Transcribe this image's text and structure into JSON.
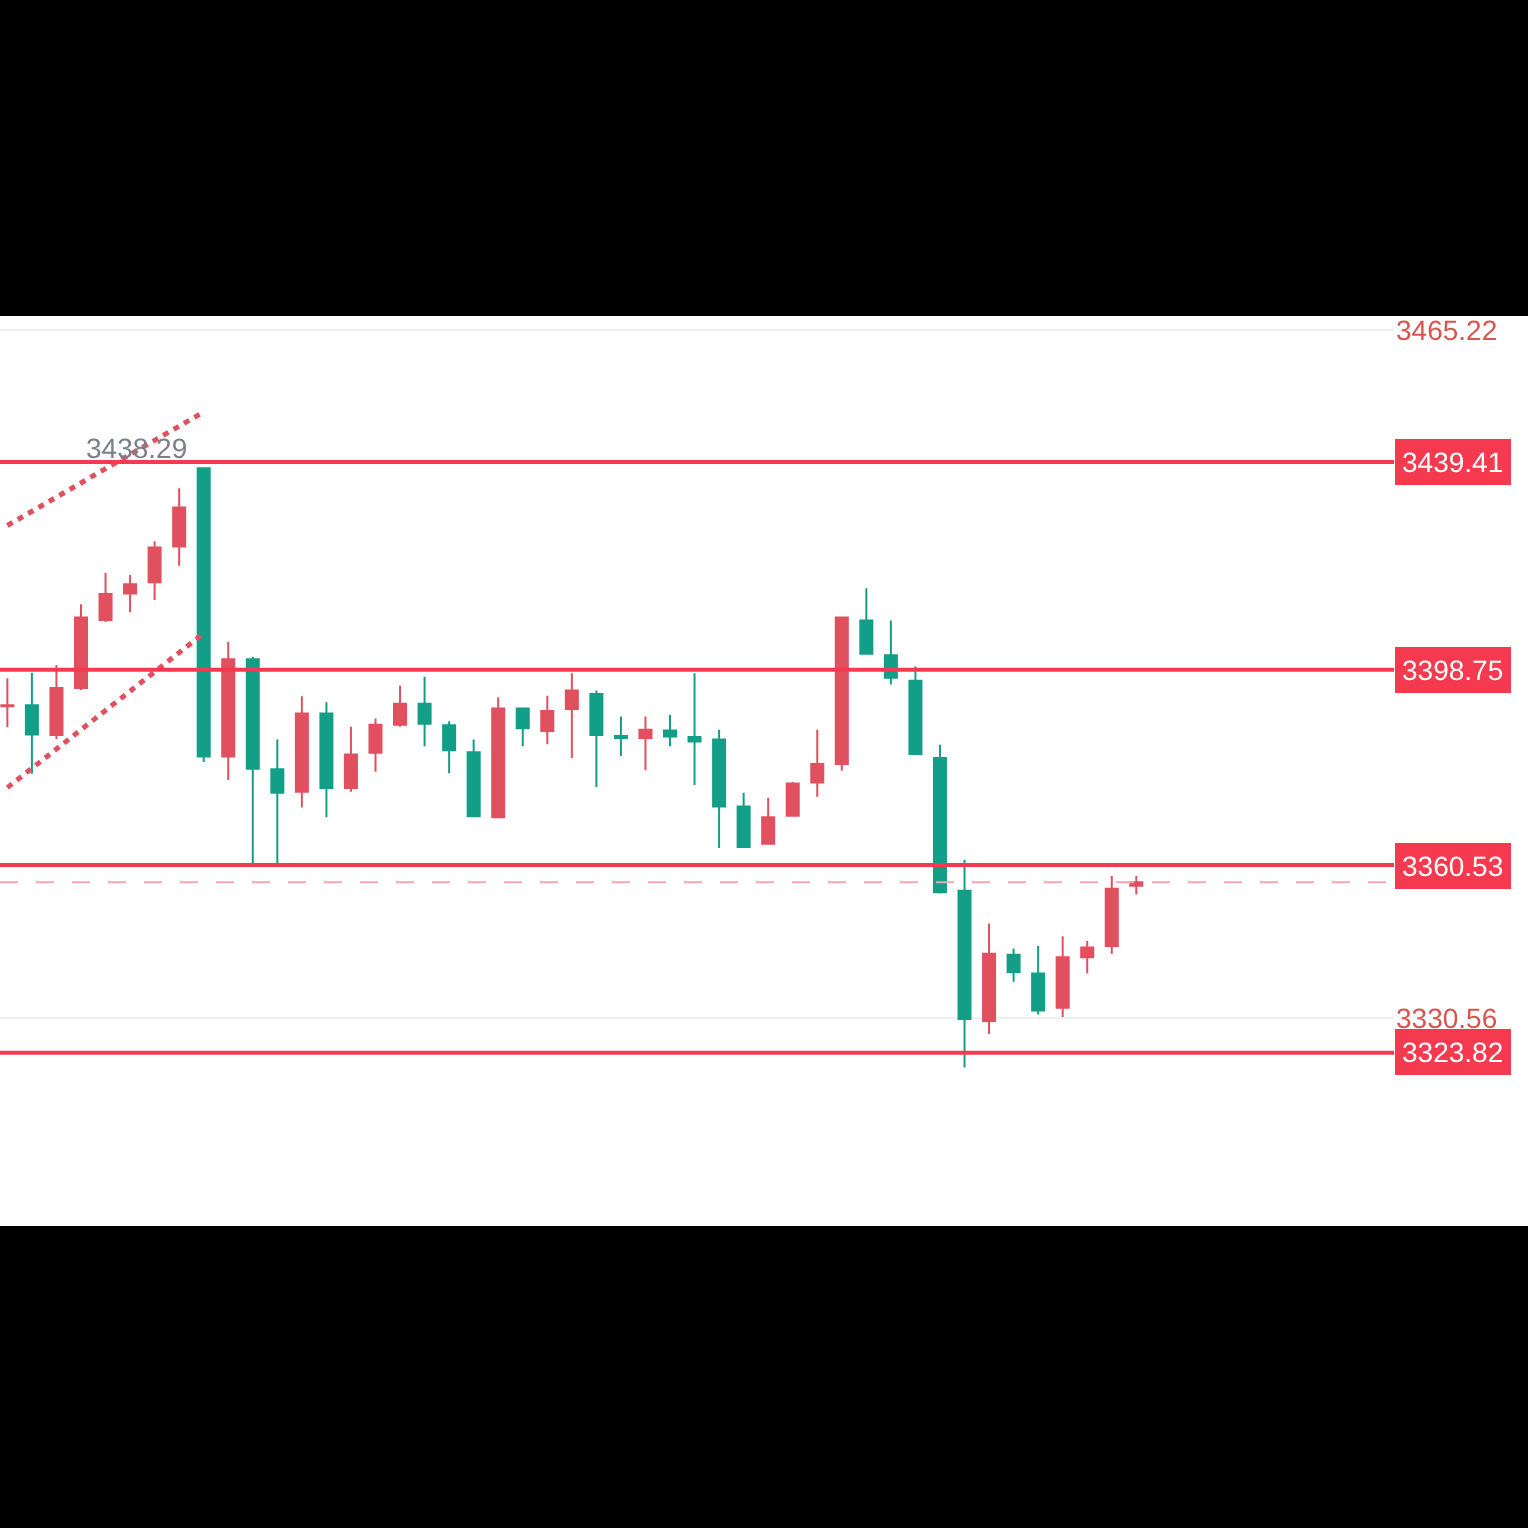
{
  "chart_data": {
    "type": "candlestick",
    "categories": [
      null,
      null,
      null,
      null,
      null,
      null,
      null,
      null,
      null,
      null,
      null,
      null,
      null,
      null,
      null,
      null,
      null,
      null,
      null,
      null,
      null,
      null,
      null,
      null,
      null,
      null,
      null,
      null,
      null,
      null,
      null,
      null,
      null,
      null,
      null,
      null,
      null,
      null,
      null,
      null,
      null,
      null,
      null,
      null,
      null,
      null,
      null,
      null,
      null,
      null,
      null,
      null,
      null,
      null,
      null,
      null,
      null
    ],
    "ohlc": [
      [
        3391.6,
        3397.1,
        3387.5,
        3391.8
      ],
      [
        3391.8,
        3398.2,
        3378.4,
        3386.1
      ],
      [
        3386.0,
        3399.7,
        3385.2,
        3395.2
      ],
      [
        3395.2,
        3411.6,
        3394.8,
        3409.0
      ],
      [
        3408.5,
        3417.7,
        3408.1,
        3413.6
      ],
      [
        3413.7,
        3417.3,
        3410.0,
        3415.5
      ],
      [
        3415.9,
        3423.9,
        3412.4,
        3422.7
      ],
      [
        3422.9,
        3434.3,
        3419.1,
        3430.5
      ],
      [
        3438.2,
        3438.29,
        3380.7,
        3381.8
      ],
      [
        3381.8,
        3404.2,
        3377.2,
        3400.8
      ],
      [
        3400.8,
        3401.3,
        3360.4,
        3379.4
      ],
      [
        3379.3,
        3385.1,
        3360.3,
        3374.7
      ],
      [
        3374.9,
        3393.6,
        3371.8,
        3390.2
      ],
      [
        3390.2,
        3392.4,
        3369.9,
        3375.6
      ],
      [
        3375.6,
        3387.6,
        3374.9,
        3382.2
      ],
      [
        3382.5,
        3389.2,
        3378.8,
        3388.0
      ],
      [
        3388.0,
        3395.7,
        3387.6,
        3392.1
      ],
      [
        3392.1,
        3397.4,
        3383.8,
        3388.2
      ],
      [
        3387.9,
        3388.7,
        3378.5,
        3383.0
      ],
      [
        3382.6,
        3385.1,
        3370.0,
        3370.1
      ],
      [
        3369.9,
        3393.4,
        3369.7,
        3391.2
      ],
      [
        3391.2,
        3391.4,
        3383.8,
        3387.3
      ],
      [
        3386.8,
        3393.7,
        3384.2,
        3390.7
      ],
      [
        3391.1,
        3398.1,
        3381.5,
        3394.7
      ],
      [
        3394.0,
        3394.7,
        3375.8,
        3386.0
      ],
      [
        3385.8,
        3389.6,
        3381.9,
        3385.4
      ],
      [
        3385.4,
        3389.6,
        3379.1,
        3387.0
      ],
      [
        3386.9,
        3389.9,
        3383.8,
        3385.7
      ],
      [
        3385.6,
        3398.1,
        3376.2,
        3384.7
      ],
      [
        3385.1,
        3387.0,
        3363.9,
        3372.0
      ],
      [
        3372.0,
        3374.7,
        3363.9,
        3364.1
      ],
      [
        3364.7,
        3373.7,
        3364.5,
        3369.9
      ],
      [
        3370.2,
        3376.8,
        3370.0,
        3376.5
      ],
      [
        3376.7,
        3387.0,
        3373.9,
        3380.3
      ],
      [
        3380.3,
        3409.2,
        3379.0,
        3409.0
      ],
      [
        3408.4,
        3414.7,
        3401.7,
        3401.9
      ],
      [
        3401.6,
        3408.4,
        3395.9,
        3397.2
      ],
      [
        3396.6,
        3399.4,
        3382.1,
        3382.3
      ],
      [
        3381.5,
        3384.1,
        3355.0,
        3355.2
      ],
      [
        3355.5,
        3361.6,
        3320.9,
        3330.4
      ],
      [
        3330.0,
        3349.1,
        3327.5,
        3343.2
      ],
      [
        3343.0,
        3344.2,
        3337.7,
        3339.6
      ],
      [
        3339.3,
        3344.7,
        3331.3,
        3332.1
      ],
      [
        3332.6,
        3346.6,
        3330.8,
        3342.5
      ],
      [
        3342.5,
        3345.7,
        3339.3,
        3344.4
      ],
      [
        3344.7,
        3358.4,
        3343.2,
        3355.9
      ],
      [
        3356.5,
        3358.4,
        3354.8,
        3357.2
      ],
      null,
      null,
      null,
      null,
      null,
      null,
      null,
      null,
      null,
      null
    ],
    "colors": [
      "#e0505f",
      "#139f87",
      "#e0505f",
      "#e0505f",
      "#e0505f",
      "#e0505f",
      "#e0505f",
      "#e0505f",
      "#139f87",
      "#e0505f",
      "#139f87",
      "#139f87",
      "#e0505f",
      "#139f87",
      "#e0505f",
      "#e0505f",
      "#e0505f",
      "#139f87",
      "#139f87",
      "#139f87",
      "#e0505f",
      "#139f87",
      "#e0505f",
      "#e0505f",
      "#139f87",
      "#139f87",
      "#e0505f",
      "#139f87",
      "#139f87",
      "#139f87",
      "#139f87",
      "#e0505f",
      "#e0505f",
      "#e0505f",
      "#e0505f",
      "#139f87",
      "#139f87",
      "#139f87",
      "#139f87",
      "#139f87",
      "#e0505f",
      "#139f87",
      "#139f87",
      "#e0505f",
      "#e0505f",
      "#e0505f",
      "#e0505f",
      null,
      null,
      null,
      null,
      null,
      null,
      null,
      null,
      null,
      null
    ],
    "series": [
      {
        "type": "line",
        "color": "#e0505f",
        "line_style": "dotted",
        "values": [
          3427.0,
          null,
          null,
          null,
          null,
          null,
          null,
          null,
          3449.2,
          null,
          null,
          null,
          null,
          null,
          null,
          null,
          null,
          null,
          null,
          null,
          null,
          null,
          null,
          null,
          null,
          null,
          null,
          null,
          null,
          null,
          null,
          null,
          null,
          null,
          null,
          null,
          null,
          null,
          null,
          null,
          null,
          null,
          null,
          null,
          null,
          null,
          null,
          null,
          null,
          null,
          null,
          null,
          null,
          null,
          null,
          null,
          null
        ]
      },
      {
        "type": "line",
        "color": "#e0505f",
        "line_style": "dotted",
        "values": [
          3375.7,
          null,
          null,
          null,
          null,
          null,
          null,
          null,
          3405.9,
          null,
          null,
          null,
          null,
          null,
          null,
          null,
          null,
          null,
          null,
          null,
          null,
          null,
          null,
          null,
          null,
          null,
          null,
          null,
          null,
          null,
          null,
          null,
          null,
          null,
          null,
          null,
          null,
          null,
          null,
          null,
          null,
          null,
          null,
          null,
          null,
          null,
          null,
          null,
          null,
          null,
          null,
          null,
          null,
          null,
          null,
          null,
          null
        ]
      }
    ],
    "ylim": [
      3289.9,
      3468
    ],
    "yticks": [
      3465.22,
      3330.56
    ],
    "tick_labels": "y",
    "grid": "y",
    "ref_lines": [
      {
        "axis": "y",
        "value": 3439.41,
        "label": "3439.41",
        "color": "#f5394f"
      },
      {
        "axis": "y",
        "value": 3398.75,
        "label": "3398.75",
        "color": "#f5394f"
      },
      {
        "axis": "y",
        "value": 3360.53,
        "label": "3360.53",
        "color": "#f5394f"
      },
      {
        "axis": "y",
        "value": 3323.82,
        "label": "3323.82",
        "color": "#f5394f"
      },
      {
        "axis": "y",
        "value": 3357.2,
        "color": "#f4a6b0",
        "line_style": "dashed"
      }
    ],
    "annotations": [
      {
        "text": "3438.29",
        "y": 3438.29
      }
    ]
  }
}
